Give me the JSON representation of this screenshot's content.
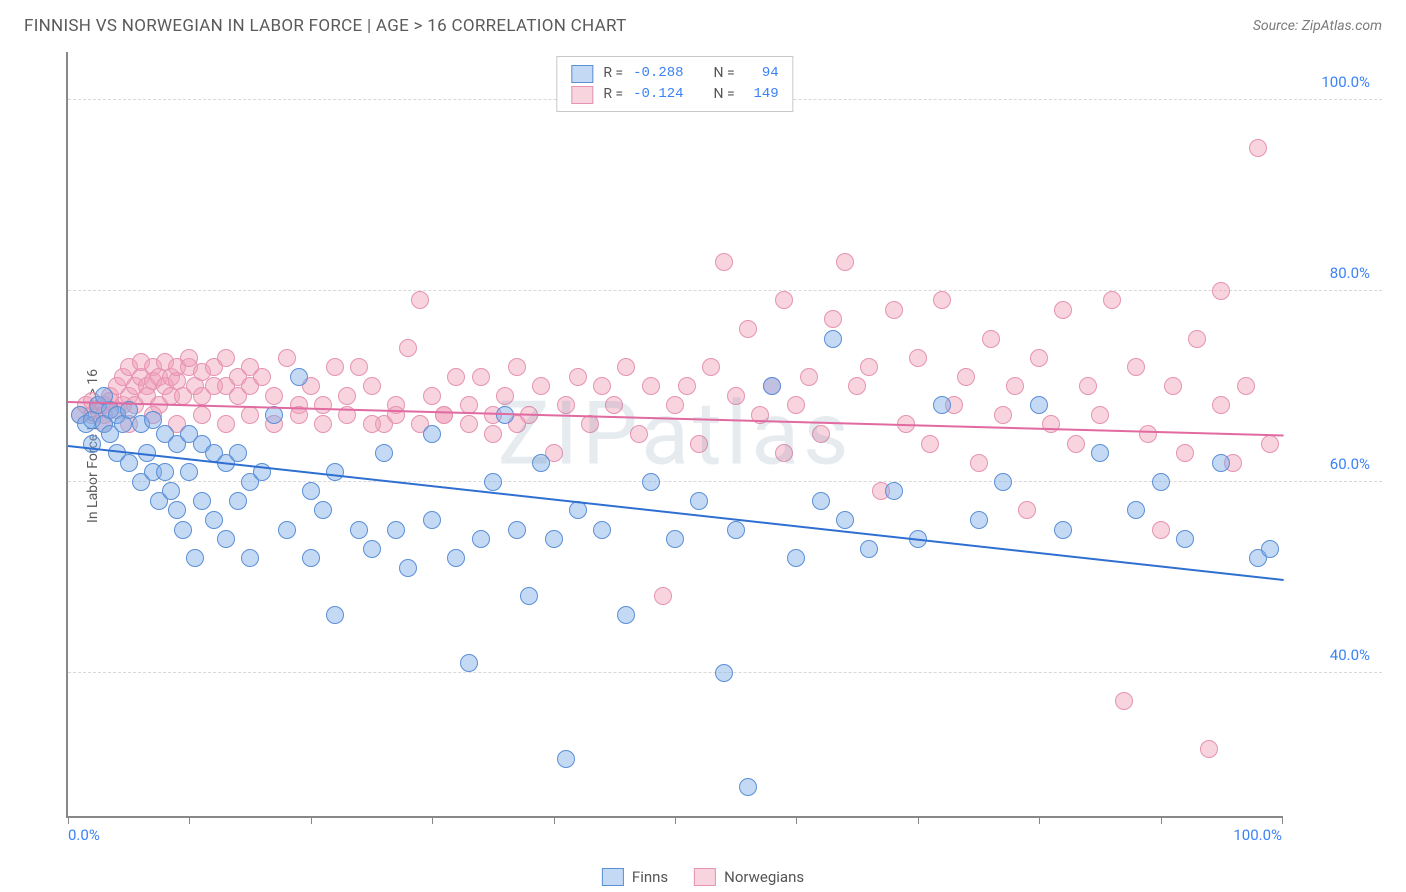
{
  "title": "FINNISH VS NORWEGIAN IN LABOR FORCE | AGE > 16 CORRELATION CHART",
  "source_label": "Source: ",
  "source_name": "ZipAtlas.com",
  "y_axis_label": "In Labor Force | Age > 16",
  "watermark": "ZIPatlas",
  "chart": {
    "xlim": [
      0,
      100
    ],
    "ylim": [
      25,
      105
    ],
    "y_gridlines": [
      40,
      60,
      80,
      100
    ],
    "y_grid_labels": [
      "40.0%",
      "60.0%",
      "80.0%",
      "100.0%"
    ],
    "x_ticks": [
      0,
      10,
      20,
      30,
      40,
      50,
      60,
      70,
      80,
      90,
      100
    ],
    "x_labels_shown": {
      "0": "0.0%",
      "100": "100.0%"
    },
    "grid_color": "#d8d8d8",
    "axis_color": "#888888",
    "background": "#ffffff",
    "point_radius": 9,
    "series": {
      "finns": {
        "label": "Finns",
        "fill": "rgba(125,170,230,0.45)",
        "stroke": "#5b8fd6",
        "trend_color": "#2e6fd1",
        "r_value": "-0.288",
        "n_value": "94",
        "trend": {
          "x1": 0,
          "y1": 64,
          "x2": 100,
          "y2": 50
        },
        "points": [
          [
            1,
            67
          ],
          [
            1.5,
            66
          ],
          [
            2,
            66.5
          ],
          [
            2,
            64
          ],
          [
            2.5,
            68
          ],
          [
            3,
            66
          ],
          [
            3,
            69
          ],
          [
            3.5,
            65
          ],
          [
            3.5,
            67.5
          ],
          [
            4,
            67
          ],
          [
            4,
            63
          ],
          [
            4.5,
            66
          ],
          [
            5,
            67.5
          ],
          [
            5,
            62
          ],
          [
            6,
            66
          ],
          [
            6,
            60
          ],
          [
            6.5,
            63
          ],
          [
            7,
            66.5
          ],
          [
            7,
            61
          ],
          [
            7.5,
            58
          ],
          [
            8,
            65
          ],
          [
            8,
            61
          ],
          [
            8.5,
            59
          ],
          [
            9,
            64
          ],
          [
            9,
            57
          ],
          [
            9.5,
            55
          ],
          [
            10,
            65
          ],
          [
            10,
            61
          ],
          [
            10.5,
            52
          ],
          [
            11,
            64
          ],
          [
            11,
            58
          ],
          [
            12,
            63
          ],
          [
            12,
            56
          ],
          [
            13,
            62
          ],
          [
            13,
            54
          ],
          [
            14,
            63
          ],
          [
            14,
            58
          ],
          [
            15,
            60
          ],
          [
            15,
            52
          ],
          [
            16,
            61
          ],
          [
            17,
            67
          ],
          [
            18,
            55
          ],
          [
            19,
            71
          ],
          [
            20,
            59
          ],
          [
            20,
            52
          ],
          [
            21,
            57
          ],
          [
            22,
            46
          ],
          [
            22,
            61
          ],
          [
            24,
            55
          ],
          [
            25,
            53
          ],
          [
            26,
            63
          ],
          [
            27,
            55
          ],
          [
            28,
            51
          ],
          [
            30,
            65
          ],
          [
            30,
            56
          ],
          [
            32,
            52
          ],
          [
            33,
            41
          ],
          [
            34,
            54
          ],
          [
            35,
            60
          ],
          [
            36,
            67
          ],
          [
            37,
            55
          ],
          [
            38,
            48
          ],
          [
            39,
            62
          ],
          [
            40,
            54
          ],
          [
            41,
            31
          ],
          [
            42,
            57
          ],
          [
            44,
            55
          ],
          [
            46,
            46
          ],
          [
            48,
            60
          ],
          [
            50,
            54
          ],
          [
            52,
            58
          ],
          [
            54,
            40
          ],
          [
            55,
            55
          ],
          [
            56,
            28
          ],
          [
            58,
            70
          ],
          [
            60,
            52
          ],
          [
            62,
            58
          ],
          [
            63,
            75
          ],
          [
            64,
            56
          ],
          [
            66,
            53
          ],
          [
            68,
            59
          ],
          [
            70,
            54
          ],
          [
            72,
            68
          ],
          [
            75,
            56
          ],
          [
            77,
            60
          ],
          [
            80,
            68
          ],
          [
            82,
            55
          ],
          [
            85,
            63
          ],
          [
            88,
            57
          ],
          [
            90,
            60
          ],
          [
            92,
            54
          ],
          [
            95,
            62
          ],
          [
            98,
            52
          ],
          [
            99,
            53
          ]
        ]
      },
      "norwegians": {
        "label": "Norwegians",
        "fill": "rgba(240,160,185,0.45)",
        "stroke": "#e593b2",
        "trend_color": "#e16aa0",
        "r_value": "-0.124",
        "n_value": "149",
        "trend": {
          "x1": 0,
          "y1": 68.5,
          "x2": 100,
          "y2": 65
        },
        "points": [
          [
            1,
            67
          ],
          [
            1.5,
            68
          ],
          [
            2,
            67
          ],
          [
            2,
            68.5
          ],
          [
            2.5,
            67.5
          ],
          [
            3,
            68
          ],
          [
            3,
            67
          ],
          [
            3.5,
            68.5
          ],
          [
            3.5,
            69
          ],
          [
            4,
            67.5
          ],
          [
            4,
            70
          ],
          [
            4.5,
            68
          ],
          [
            4.5,
            71
          ],
          [
            5,
            69
          ],
          [
            5,
            72
          ],
          [
            5.5,
            70
          ],
          [
            5.5,
            68
          ],
          [
            6,
            71
          ],
          [
            6,
            72.5
          ],
          [
            6.5,
            70
          ],
          [
            6.5,
            69
          ],
          [
            7,
            72
          ],
          [
            7,
            70.5
          ],
          [
            7.5,
            68
          ],
          [
            7.5,
            71
          ],
          [
            8,
            70
          ],
          [
            8,
            72.5
          ],
          [
            8.5,
            69
          ],
          [
            8.5,
            71
          ],
          [
            9,
            70.5
          ],
          [
            9,
            72
          ],
          [
            9.5,
            69
          ],
          [
            10,
            72
          ],
          [
            10,
            73
          ],
          [
            10.5,
            70
          ],
          [
            11,
            71.5
          ],
          [
            11,
            69
          ],
          [
            12,
            72
          ],
          [
            12,
            70
          ],
          [
            13,
            70
          ],
          [
            13,
            73
          ],
          [
            14,
            69
          ],
          [
            14,
            71
          ],
          [
            15,
            70
          ],
          [
            15,
            72
          ],
          [
            16,
            71
          ],
          [
            17,
            69
          ],
          [
            18,
            73
          ],
          [
            19,
            68
          ],
          [
            20,
            70
          ],
          [
            21,
            68
          ],
          [
            22,
            72
          ],
          [
            23,
            69
          ],
          [
            24,
            72
          ],
          [
            25,
            70
          ],
          [
            26,
            66
          ],
          [
            27,
            68
          ],
          [
            28,
            74
          ],
          [
            29,
            79
          ],
          [
            30,
            69
          ],
          [
            31,
            67
          ],
          [
            32,
            71
          ],
          [
            33,
            68
          ],
          [
            34,
            71
          ],
          [
            35,
            65
          ],
          [
            36,
            69
          ],
          [
            37,
            72
          ],
          [
            38,
            67
          ],
          [
            39,
            70
          ],
          [
            40,
            63
          ],
          [
            41,
            68
          ],
          [
            42,
            71
          ],
          [
            43,
            66
          ],
          [
            44,
            70
          ],
          [
            45,
            68
          ],
          [
            46,
            72
          ],
          [
            47,
            65
          ],
          [
            48,
            70
          ],
          [
            49,
            48
          ],
          [
            50,
            68
          ],
          [
            51,
            70
          ],
          [
            52,
            64
          ],
          [
            53,
            72
          ],
          [
            54,
            83
          ],
          [
            55,
            69
          ],
          [
            56,
            76
          ],
          [
            57,
            67
          ],
          [
            58,
            70
          ],
          [
            59,
            63
          ],
          [
            59,
            79
          ],
          [
            60,
            68
          ],
          [
            61,
            71
          ],
          [
            62,
            65
          ],
          [
            63,
            77
          ],
          [
            64,
            83
          ],
          [
            65,
            70
          ],
          [
            66,
            72
          ],
          [
            67,
            59
          ],
          [
            68,
            78
          ],
          [
            69,
            66
          ],
          [
            70,
            73
          ],
          [
            71,
            64
          ],
          [
            72,
            79
          ],
          [
            73,
            68
          ],
          [
            74,
            71
          ],
          [
            75,
            62
          ],
          [
            76,
            75
          ],
          [
            77,
            67
          ],
          [
            78,
            70
          ],
          [
            79,
            57
          ],
          [
            80,
            73
          ],
          [
            81,
            66
          ],
          [
            82,
            78
          ],
          [
            83,
            64
          ],
          [
            84,
            70
          ],
          [
            85,
            67
          ],
          [
            86,
            79
          ],
          [
            87,
            37
          ],
          [
            88,
            72
          ],
          [
            89,
            65
          ],
          [
            90,
            55
          ],
          [
            91,
            70
          ],
          [
            92,
            63
          ],
          [
            93,
            75
          ],
          [
            94,
            32
          ],
          [
            95,
            68
          ],
          [
            95,
            80
          ],
          [
            96,
            62
          ],
          [
            97,
            70
          ],
          [
            98,
            95
          ],
          [
            99,
            64
          ],
          [
            3,
            66
          ],
          [
            5,
            66
          ],
          [
            7,
            67
          ],
          [
            9,
            66
          ],
          [
            11,
            67
          ],
          [
            13,
            66
          ],
          [
            15,
            67
          ],
          [
            17,
            66
          ],
          [
            19,
            67
          ],
          [
            21,
            66
          ],
          [
            23,
            67
          ],
          [
            25,
            66
          ],
          [
            27,
            67
          ],
          [
            29,
            66
          ],
          [
            31,
            67
          ],
          [
            33,
            66
          ],
          [
            35,
            67
          ],
          [
            37,
            66
          ]
        ]
      }
    }
  },
  "legend_top": {
    "r_label": "R =",
    "n_label": "N ="
  }
}
